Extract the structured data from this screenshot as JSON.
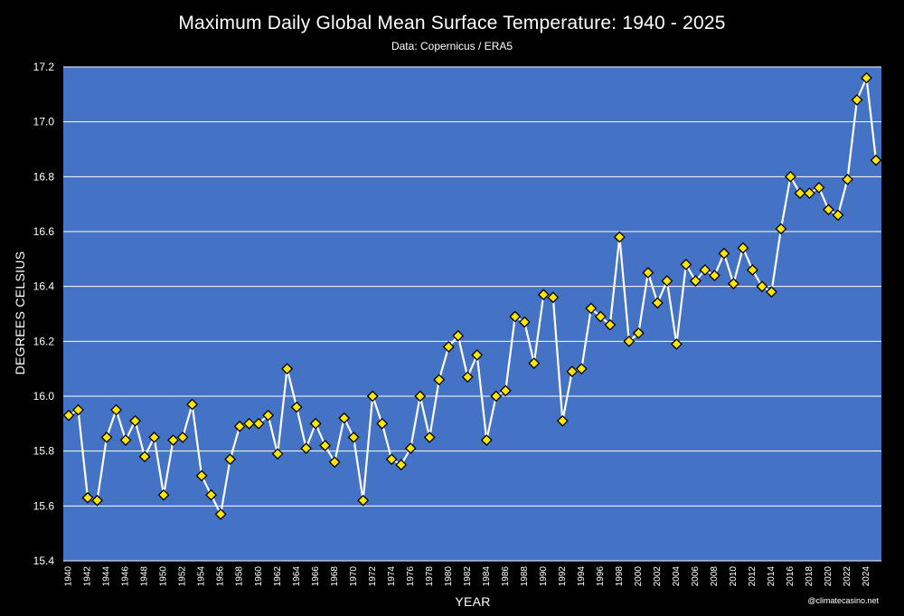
{
  "chart_data": {
    "type": "line",
    "title": "Maximum Daily Global Mean Surface Temperature: 1940 - 2025",
    "subtitle": "Data: Copernicus / ERA5",
    "xlabel": "YEAR",
    "ylabel": "DEGREES CELSIUS",
    "credit": "@climatecasino.net",
    "ylim": [
      15.4,
      17.2
    ],
    "yticks": [
      "15.4",
      "15.6",
      "15.8",
      "16.0",
      "16.2",
      "16.4",
      "16.6",
      "16.8",
      "17.0",
      "17.2"
    ],
    "xlim": [
      1940,
      2025
    ],
    "xticks": [
      1940,
      1942,
      1944,
      1946,
      1948,
      1950,
      1952,
      1954,
      1956,
      1958,
      1960,
      1962,
      1964,
      1966,
      1968,
      1970,
      1972,
      1974,
      1976,
      1978,
      1980,
      1982,
      1984,
      1986,
      1988,
      1990,
      1992,
      1994,
      1996,
      1998,
      2000,
      2002,
      2004,
      2006,
      2008,
      2010,
      2012,
      2014,
      2016,
      2018,
      2020,
      2022,
      2024
    ],
    "grid": true,
    "colors": {
      "background": "#000000",
      "plot_area": "#4472c4",
      "gridline": "#ffffff",
      "line": "#ffffff",
      "marker_fill": "#ffe600",
      "marker_edge": "#000000"
    },
    "series": [
      {
        "name": "Maximum daily global mean surface temperature",
        "x": [
          1940,
          1941,
          1942,
          1943,
          1944,
          1945,
          1946,
          1947,
          1948,
          1949,
          1950,
          1951,
          1952,
          1953,
          1954,
          1955,
          1956,
          1957,
          1958,
          1959,
          1960,
          1961,
          1962,
          1963,
          1964,
          1965,
          1966,
          1967,
          1968,
          1969,
          1970,
          1971,
          1972,
          1973,
          1974,
          1975,
          1976,
          1977,
          1978,
          1979,
          1980,
          1981,
          1982,
          1983,
          1984,
          1985,
          1986,
          1987,
          1988,
          1989,
          1990,
          1991,
          1992,
          1993,
          1994,
          1995,
          1996,
          1997,
          1998,
          1999,
          2000,
          2001,
          2002,
          2003,
          2004,
          2005,
          2006,
          2007,
          2008,
          2009,
          2010,
          2011,
          2012,
          2013,
          2014,
          2015,
          2016,
          2017,
          2018,
          2019,
          2020,
          2021,
          2022,
          2023,
          2024,
          2025
        ],
        "values": [
          15.93,
          15.95,
          15.63,
          15.62,
          15.85,
          15.95,
          15.84,
          15.91,
          15.78,
          15.85,
          15.64,
          15.84,
          15.85,
          15.97,
          15.71,
          15.64,
          15.57,
          15.77,
          15.89,
          15.9,
          15.9,
          15.93,
          15.79,
          16.1,
          15.96,
          15.81,
          15.9,
          15.82,
          15.76,
          15.92,
          15.85,
          15.62,
          16.0,
          15.9,
          15.77,
          15.75,
          15.81,
          16.0,
          15.85,
          16.06,
          16.18,
          16.22,
          16.07,
          16.15,
          15.84,
          16.0,
          16.02,
          16.29,
          16.27,
          16.12,
          16.37,
          16.36,
          15.91,
          16.09,
          16.1,
          16.32,
          16.29,
          16.26,
          16.58,
          16.2,
          16.23,
          16.45,
          16.34,
          16.42,
          16.19,
          16.48,
          16.42,
          16.46,
          16.44,
          16.52,
          16.41,
          16.54,
          16.46,
          16.4,
          16.38,
          16.61,
          16.8,
          16.74,
          16.74,
          16.76,
          16.68,
          16.66,
          16.79,
          17.08,
          17.16,
          16.86
        ]
      }
    ]
  }
}
